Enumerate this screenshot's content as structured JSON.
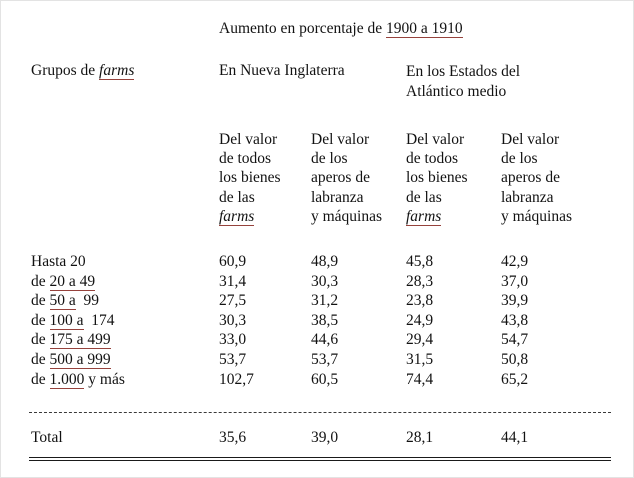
{
  "title": {
    "prefix": "Aumento en porcentaje de ",
    "years": "1900 a 1910"
  },
  "headers": {
    "row_group": {
      "prefix": "Grupos de ",
      "farms": "farms"
    },
    "region_new_england": "En Nueva Inglaterra",
    "region_mid_atlantic": "En los Estados del Atlántico medio",
    "col_value_all": {
      "lines": "Del valor\nde todos\nlos bienes\nde las",
      "farms": "farms"
    },
    "col_value_tools": "Del valor\nde los\naperos de\nlabranza\ny máquinas"
  },
  "rows": [
    {
      "pre": "Hasta 20",
      "u": "",
      "post": "",
      "v": [
        "60,9",
        "48,9",
        "45,8",
        "42,9"
      ]
    },
    {
      "pre": "de ",
      "u": "20 a 49",
      "post": "",
      "v": [
        "31,4",
        "30,3",
        "28,3",
        "37,0"
      ]
    },
    {
      "pre": "de ",
      "u": "50 a",
      "post": "  99",
      "v": [
        "27,5",
        "31,2",
        "23,8",
        "39,9"
      ]
    },
    {
      "pre": "de ",
      "u": "100 a",
      "post": "  174",
      "v": [
        "30,3",
        "38,5",
        "24,9",
        "43,8"
      ]
    },
    {
      "pre": "de ",
      "u": "175 a 499",
      "post": "",
      "v": [
        "33,0",
        "44,6",
        "29,4",
        "54,7"
      ]
    },
    {
      "pre": "de ",
      "u": "500 a 999",
      "post": "",
      "v": [
        "53,7",
        "53,7",
        "31,5",
        "50,8"
      ]
    },
    {
      "pre": "de ",
      "u": "1.000",
      "post": " y más",
      "v": [
        "102,7",
        "60,5",
        "74,4",
        "65,2"
      ]
    }
  ],
  "total": {
    "label": "Total",
    "v": [
      "35,6",
      "39,0",
      "28,1",
      "44,1"
    ]
  },
  "colors": {
    "background": "#ffffff",
    "text": "#121212",
    "spellcheck_underline": "#96423c"
  }
}
